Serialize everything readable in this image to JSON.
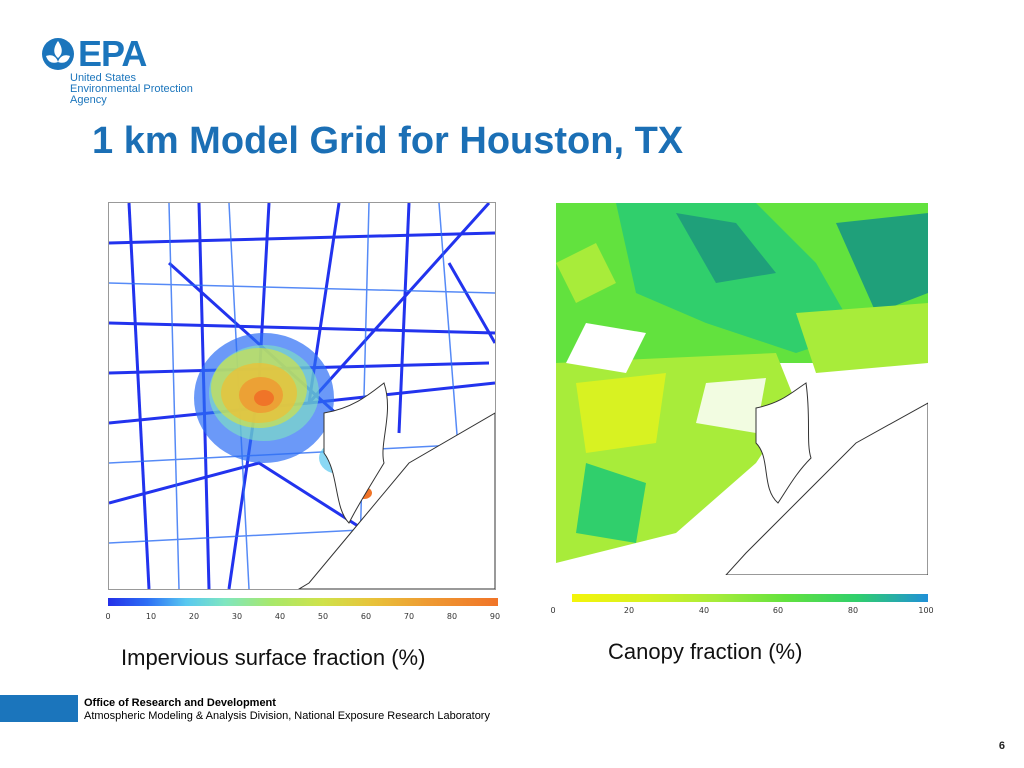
{
  "logo": {
    "wordmark": "EPA",
    "agency_lines": [
      "United States",
      "Environmental Protection",
      "Agency"
    ],
    "color": "#1b75bc"
  },
  "slide": {
    "title": "1 km Model Grid for Houston, TX",
    "title_color": "#1b6fb5",
    "page_number": "6"
  },
  "left_panel": {
    "caption": "Impervious surface fraction (%)",
    "colorbar_ticks": [
      "0",
      "10",
      "20",
      "30",
      "40",
      "50",
      "60",
      "70",
      "80",
      "90"
    ],
    "colorbar_colors": [
      "#2430e8",
      "#58c8f0",
      "#a8e86a",
      "#e8c23a",
      "#f07428"
    ]
  },
  "right_panel": {
    "caption": "Canopy fraction (%)",
    "colorbar_ticks": [
      "0",
      "20",
      "40",
      "60",
      "80",
      "100"
    ],
    "colorbar_colors": [
      "#f4f40a",
      "#a8ec3a",
      "#62e23e",
      "#30cf6c",
      "#2090d8"
    ]
  },
  "footer": {
    "office": "Office of Research and Development",
    "division": "Atmospheric Modeling & Analysis Division, National Exposure Research Laboratory",
    "accent_color": "#1b75bc"
  }
}
